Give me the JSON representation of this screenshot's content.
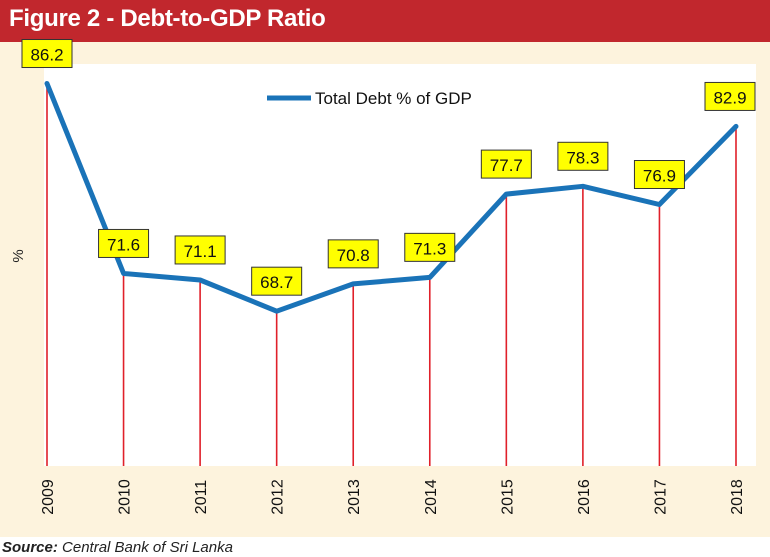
{
  "header": {
    "title": "Figure 2 - Debt-to-GDP Ratio"
  },
  "footer": {
    "source_label": "Source:",
    "source_text": "Central Bank of Sri Lanka"
  },
  "colors": {
    "title_bar": "#c1272d",
    "panel_bg": "#fdf3dd",
    "line": "#1a73b8",
    "drop_lines": "#e0202a",
    "label_box": "#ffff00"
  },
  "chart_data": {
    "type": "line",
    "title": "",
    "xlabel": "",
    "ylabel": "%",
    "categories": [
      "2009",
      "2010",
      "2011",
      "2012",
      "2013",
      "2014",
      "2015",
      "2016",
      "2017",
      "2018"
    ],
    "series": [
      {
        "name": "Total Debt % of GDP",
        "values": [
          86.2,
          71.6,
          71.1,
          68.7,
          70.8,
          71.3,
          77.7,
          78.3,
          76.9,
          82.9
        ]
      }
    ],
    "ylim": [
      56.8,
      87.7
    ],
    "grid": false,
    "legend": "top-center",
    "data_labels": true
  }
}
